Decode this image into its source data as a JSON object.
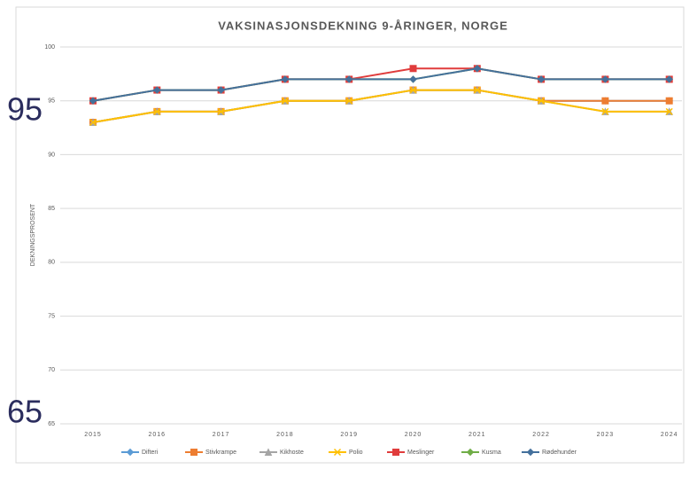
{
  "chart_data": {
    "type": "line",
    "title": "VAKSINASJONSDEKNING 9-ÅRINGER, NORGE",
    "ylabel": "DEKNINGSPROSENT",
    "categories": [
      "2015",
      "2016",
      "2017",
      "2018",
      "2019",
      "2020",
      "2021",
      "2022",
      "2023",
      "2024"
    ],
    "series": [
      {
        "name": "Difteri",
        "color": "#5b9bd5",
        "marker": "diamond",
        "values": [
          93,
          94,
          94,
          95,
          95,
          96,
          96,
          95,
          95,
          95
        ]
      },
      {
        "name": "Stivkrampe",
        "color": "#ed7d31",
        "marker": "square",
        "values": [
          93,
          94,
          94,
          95,
          95,
          96,
          96,
          95,
          95,
          95
        ]
      },
      {
        "name": "Kikhoste",
        "color": "#a5a5a5",
        "marker": "triangle",
        "values": [
          93,
          94,
          94,
          95,
          95,
          96,
          96,
          95,
          94,
          94
        ]
      },
      {
        "name": "Polio",
        "color": "#ffc000",
        "marker": "x",
        "values": [
          93,
          94,
          94,
          95,
          95,
          96,
          96,
          95,
          94,
          94
        ]
      },
      {
        "name": "Meslinger",
        "color": "#e03c3c",
        "marker": "square",
        "values": [
          95,
          96,
          96,
          97,
          97,
          98,
          98,
          97,
          97,
          97
        ]
      },
      {
        "name": "Kusma",
        "color": "#70ad47",
        "marker": "diamond",
        "values": [
          95,
          96,
          96,
          97,
          97,
          97,
          98,
          97,
          97,
          97
        ]
      },
      {
        "name": "Rødehunder",
        "color": "#44709c",
        "marker": "diamond",
        "values": [
          95,
          96,
          96,
          97,
          97,
          97,
          98,
          97,
          97,
          97
        ]
      }
    ],
    "ylim": [
      65,
      100
    ],
    "yticks": [
      65,
      70,
      75,
      80,
      85,
      90,
      95,
      100
    ],
    "grid": true,
    "overlay_labels": [
      "95",
      "65"
    ]
  }
}
